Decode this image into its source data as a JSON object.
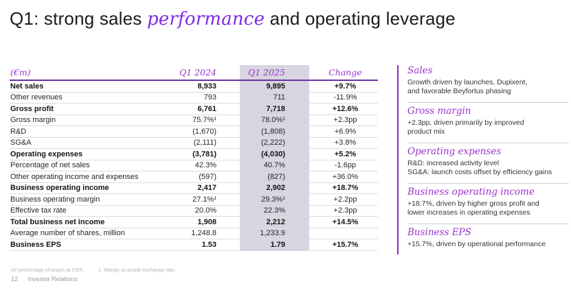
{
  "title": {
    "part1": "Q1: strong sales ",
    "italic": "performance",
    "part2": " and operating leverage"
  },
  "table": {
    "unit_header": "(€m)",
    "columns": [
      "Q1 2024",
      "Q1 2025",
      "Change"
    ],
    "rows": [
      {
        "label": "Net sales",
        "q1_2024": "8,933",
        "q1_2025": "9,895",
        "change": "+9.7%",
        "bold": true
      },
      {
        "label": "Other revenues",
        "q1_2024": "793",
        "q1_2025": "711",
        "change": "-11.9%",
        "bold": false
      },
      {
        "label": "Gross profit",
        "q1_2024": "6,761",
        "q1_2025": "7,718",
        "change": "+12.6%",
        "bold": true
      },
      {
        "label": "Gross margin",
        "q1_2024": "75.7%¹",
        "q1_2025": "78.0%¹",
        "change": "+2.3pp",
        "bold": false
      },
      {
        "label": "R&D",
        "q1_2024": "(1,670)",
        "q1_2025": "(1,808)",
        "change": "+6.9%",
        "bold": false
      },
      {
        "label": "SG&A",
        "q1_2024": "(2,111)",
        "q1_2025": "(2,222)",
        "change": "+3.8%",
        "bold": false
      },
      {
        "label": "Operating expenses",
        "q1_2024": "(3,781)",
        "q1_2025": "(4,030)",
        "change": "+5.2%",
        "bold": true
      },
      {
        "label": "Percentage of net sales",
        "q1_2024": "42.3%",
        "q1_2025": "40.7%",
        "change": "-1.6pp",
        "bold": false
      },
      {
        "label": "Other operating income and expenses",
        "q1_2024": "(597)",
        "q1_2025": "(827)",
        "change": "+36.0%",
        "bold": false
      },
      {
        "label": "Business operating income",
        "q1_2024": "2,417",
        "q1_2025": "2,902",
        "change": "+18.7%",
        "bold": true
      },
      {
        "label": "Business operating margin",
        "q1_2024": "27.1%¹",
        "q1_2025": "29.3%¹",
        "change": "+2.2pp",
        "bold": false
      },
      {
        "label": "Effective tax rate",
        "q1_2024": "20.0%",
        "q1_2025": "22.3%",
        "change": "+2.3pp",
        "bold": false
      },
      {
        "label": "Total business net income",
        "q1_2024": "1,908",
        "q1_2025": "2,212",
        "change": "+14.5%",
        "bold": true
      },
      {
        "label": "Average number of shares, million",
        "q1_2024": "1,248.8",
        "q1_2025": "1,233.9",
        "change": "",
        "bold": false
      },
      {
        "label": "Business EPS",
        "q1_2024": "1.53",
        "q1_2025": "1.79",
        "change": "+15.7%",
        "bold": true
      }
    ]
  },
  "notes": {
    "sections": [
      {
        "heading": "Sales",
        "body": "Growth driven by launches, Dupixent,\nand favorable Beyfortus phasing"
      },
      {
        "heading": "Gross margin",
        "body": "+2.3pp, driven primarily by improved\nproduct mix"
      },
      {
        "heading": "Operating expenses",
        "body": "R&D: increased activity level\nSG&A: launch costs offset by efficiency gains"
      },
      {
        "heading": "Business operating income",
        "body": "+18.7%, driven by higher gross profit and\nlower increases in operating expenses"
      },
      {
        "heading": "Business EPS",
        "body": "+15.7%, driven by operational performance"
      }
    ]
  },
  "footer": {
    "footnote1": "All percentage changes at CER.",
    "footnote2": "1. Margin at actual exchange rate.",
    "page_number": "12",
    "page_label": "Investor Relations"
  },
  "colors": {
    "accent_purple": "#7d2ae8",
    "heading_purple": "#9933cc",
    "header_underline_purple": "#7030a0",
    "highlight_column_bg": "#d8d4e0",
    "panel_border_purple": "#7b2fbe",
    "row_divider": "#dcdcdc"
  }
}
